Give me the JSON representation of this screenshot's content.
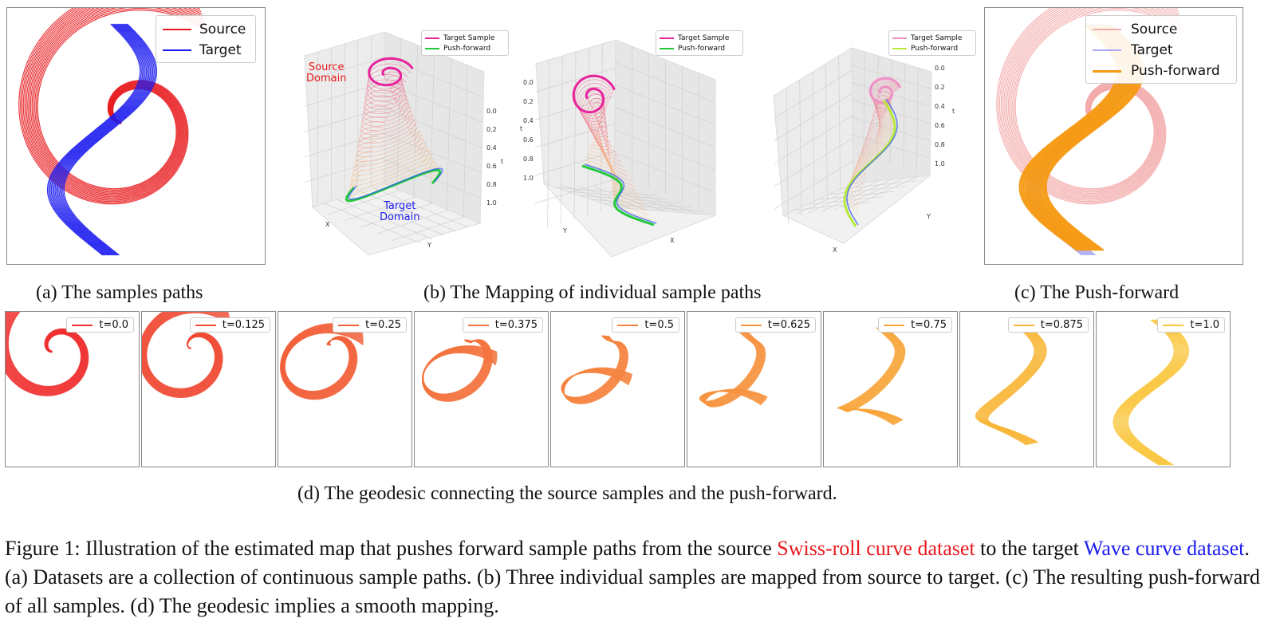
{
  "panel_a": {
    "legend": [
      {
        "label": "Source",
        "color": "#e8191c"
      },
      {
        "label": "Target",
        "color": "#1c1cf0"
      }
    ],
    "caption": "(a) The samples paths"
  },
  "panel_b": {
    "plots": [
      {
        "legend": [
          {
            "label": "Target Sample",
            "color": "#e8219c"
          },
          {
            "label": "Push-forward",
            "color": "#22c93a"
          }
        ],
        "t_ticks": [
          "0.0",
          "0.2",
          "0.4",
          "0.6",
          "0.8",
          "1.0"
        ],
        "t_label": "t",
        "x_label": "X",
        "y_label": "Y"
      },
      {
        "legend": [
          {
            "label": "Target Sample",
            "color": "#e8219c"
          },
          {
            "label": "Push-forward",
            "color": "#22c93a"
          }
        ],
        "t_ticks": [
          "0.0",
          "0.2",
          "0.4",
          "0.6",
          "0.8",
          "1.0"
        ],
        "t_label": "t",
        "x_label": "X",
        "y_label": "Y"
      },
      {
        "legend": [
          {
            "label": "Target Sample",
            "color": "#f08fc4"
          },
          {
            "label": "Push-forward",
            "color": "#b6ea3a"
          }
        ],
        "t_ticks": [
          "0.0",
          "0.2",
          "0.4",
          "0.6",
          "0.8",
          "1.0"
        ],
        "t_label": "t",
        "x_label": "X",
        "y_label": "Y"
      }
    ],
    "source_domain": "Source\nDomain",
    "target_domain": "Target\nDomain",
    "caption": "(b) The Mapping of individual sample paths"
  },
  "panel_c": {
    "legend": [
      {
        "label": "Source",
        "color": "#f3a9a9"
      },
      {
        "label": "Target",
        "color": "#a9a9f3"
      },
      {
        "label": "Push-forward",
        "color": "#f59a12"
      }
    ],
    "caption": "(c) The Push-forward"
  },
  "panel_d": {
    "frames": [
      {
        "t": 0.0,
        "label": "t=0.0",
        "color": "#f03030"
      },
      {
        "t": 0.125,
        "label": "t=0.125",
        "color": "#f04a34"
      },
      {
        "t": 0.25,
        "label": "t=0.25",
        "color": "#f2603a"
      },
      {
        "t": 0.375,
        "label": "t=0.375",
        "color": "#f4733e"
      },
      {
        "t": 0.5,
        "label": "t=0.5",
        "color": "#f58440"
      },
      {
        "t": 0.625,
        "label": "t=0.625",
        "color": "#f69440"
      },
      {
        "t": 0.75,
        "label": "t=0.75",
        "color": "#f7a63c"
      },
      {
        "t": 0.875,
        "label": "t=0.875",
        "color": "#f8b73a"
      },
      {
        "t": 1.0,
        "label": "t=1.0",
        "color": "#f9c53c"
      }
    ],
    "caption": "(d) The geodesic connecting the source samples and the push-forward."
  },
  "figure_caption": {
    "part1": "Figure 1: Illustration of the estimated map that pushes forward sample paths from the source ",
    "source_name": "Swiss-roll curve dataset",
    "part2": " to the target ",
    "target_name": "Wave curve dataset",
    "part3": ". (a) Datasets are a collection of continuous sample paths. (b) Three individual samples are mapped from source to target. (c) The resulting push-forward of all samples. (d) The geodesic implies a smooth mapping."
  }
}
